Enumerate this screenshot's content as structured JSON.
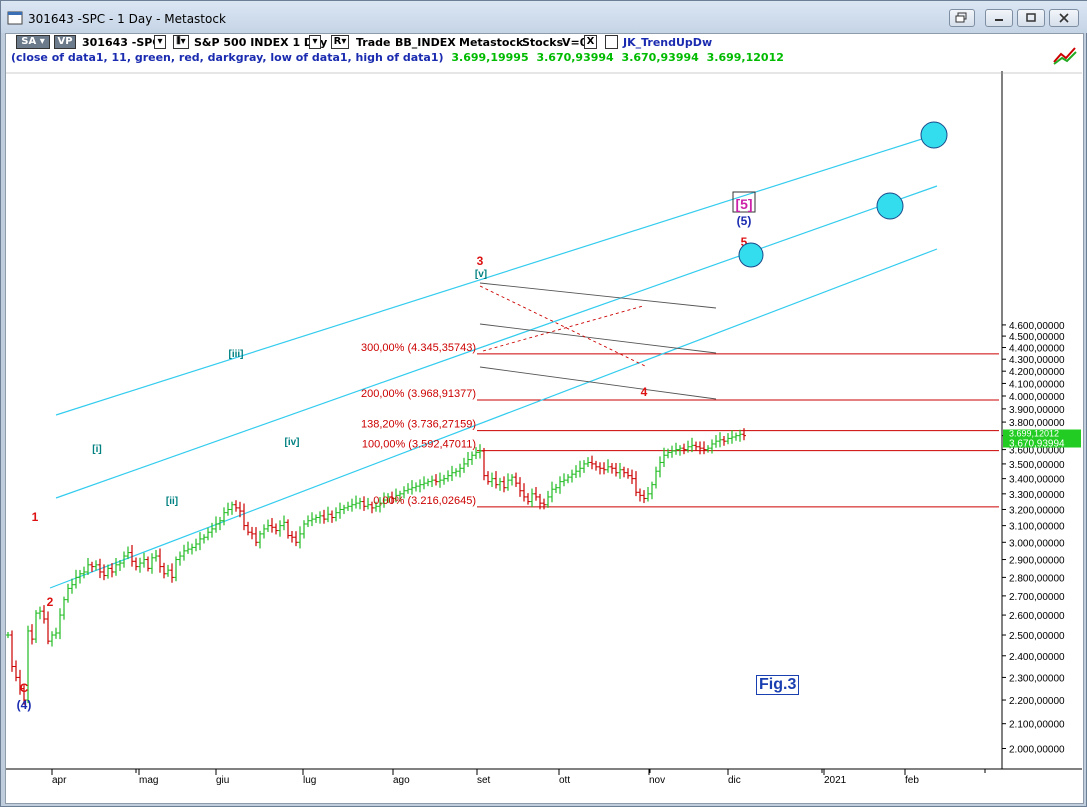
{
  "window": {
    "title": "301643 -SPC - 1 Day - Metastock",
    "buttons": [
      "restore-down",
      "minimize",
      "maximize",
      "close"
    ]
  },
  "toolbar": {
    "sa_label": "SA",
    "vp_label": "VP",
    "symbol": "301643 -SPC",
    "chart_title": "S&P 500 INDEX  1 Day",
    "r_label": "R",
    "trade_label": "Trade",
    "indicator1": "BB_INDEX",
    "source": "Metastock",
    "stocks": "Stocks",
    "v_label": "V=0",
    "x_label": "X",
    "indicator2": "JK_TrendUpDw"
  },
  "indicator_line": {
    "formula": "(close of data1,  11,  green,  red,  darkgray,  low of data1,  high of data1)",
    "values": [
      "3.699,19995",
      "3.670,93994",
      "3.670,93994",
      "3.699,12012"
    ],
    "value_colors": [
      "#00bb00",
      "#00bb00",
      "#00bb00",
      "#00bb00"
    ]
  },
  "price_axis": {
    "labels": [
      "4.600,00000",
      "4.500,00000",
      "4.400,00000",
      "4.300,00000",
      "4.200,00000",
      "4.100,00000",
      "4.000,00000",
      "3.900,00000",
      "3.800,00000",
      "3.700,00000",
      "3.600,00000",
      "3.500,00000",
      "3.400,00000",
      "3.300,00000",
      "3.200,00000",
      "3.100,00000",
      "3.000,00000",
      "2.900,00000",
      "2.800,00000",
      "2.700,00000",
      "2.600,00000",
      "2.500,00000",
      "2.400,00000",
      "2.300,00000",
      "2.200,00000",
      "2.100,00000",
      "2.000,00000"
    ],
    "values": [
      4600,
      4500,
      4400,
      4300,
      4200,
      4100,
      4000,
      3900,
      3800,
      3700,
      3600,
      3500,
      3400,
      3300,
      3200,
      3100,
      3000,
      2900,
      2800,
      2700,
      2600,
      2500,
      2400,
      2300,
      2200,
      2100,
      2000
    ],
    "last_price_top": "3.699,12012",
    "last_price": "3.670,93994",
    "last_price_color": "#22cc22"
  },
  "time_axis": {
    "labels": [
      "apr",
      "mag",
      "giu",
      "lug",
      "ago",
      "set",
      "ott",
      "nov",
      "dic",
      "2021",
      "feb"
    ]
  },
  "fib_levels": [
    {
      "label": "300,00% (4.345,35743)",
      "value": 4345.35743
    },
    {
      "label": "200,00% (3.968,91377)",
      "value": 3968.91377
    },
    {
      "label": "138,20% (3.736,27159)",
      "value": 3736.27159
    },
    {
      "label": "100,00% (3.592,47011)",
      "value": 3592.47011
    },
    {
      "label": "0,00% (3.216,02645)",
      "value": 3216.02645
    }
  ],
  "wave_labels": {
    "red": [
      "1",
      "2",
      "3",
      "4",
      "5",
      "C"
    ],
    "blue": [
      "(4)",
      "(5)"
    ],
    "magenta": "[5]",
    "teal": [
      "[i]",
      "[ii]",
      "[iii]",
      "[iv]",
      "[v]"
    ]
  },
  "figure_label": "Fig.3",
  "colors": {
    "up_bar": "#22bb22",
    "down_bar": "#cc0000",
    "fib_line": "#cc0000",
    "channel": "#33ccee",
    "target_circle": "#33ddee"
  }
}
